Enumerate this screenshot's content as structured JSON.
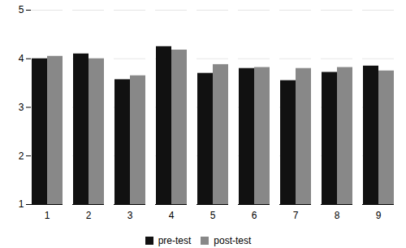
{
  "chart_data": {
    "type": "bar",
    "categories": [
      "1",
      "2",
      "3",
      "4",
      "5",
      "6",
      "7",
      "8",
      "9"
    ],
    "series": [
      {
        "name": "pre-test",
        "color": "#111111",
        "values": [
          4.0,
          4.1,
          3.57,
          4.25,
          3.7,
          3.8,
          3.55,
          3.72,
          3.85
        ]
      },
      {
        "name": "post-test",
        "color": "#888888",
        "values": [
          4.05,
          4.0,
          3.65,
          4.18,
          3.88,
          3.82,
          3.8,
          3.82,
          3.75
        ]
      }
    ],
    "ylim": [
      1,
      5
    ],
    "yticks": [
      1,
      2,
      3,
      4,
      5
    ],
    "grid": true,
    "legend": "bottom"
  }
}
